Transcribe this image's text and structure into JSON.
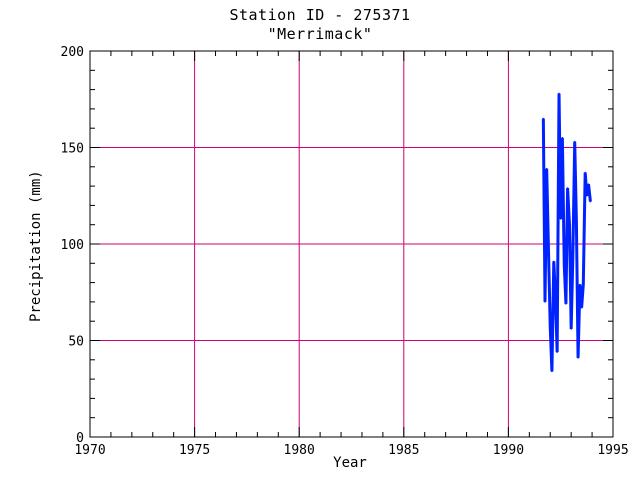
{
  "chart_data": {
    "type": "line",
    "title": "Station ID - 275371",
    "subtitle": "\"Merrimack\"",
    "xlabel": "Year",
    "ylabel": "Precipitation (mm)",
    "xlim": [
      1970,
      1995
    ],
    "ylim": [
      0,
      200
    ],
    "xticks": [
      1970,
      1975,
      1980,
      1985,
      1990,
      1995
    ],
    "yticks": [
      0,
      50,
      100,
      150,
      200
    ],
    "grid": true,
    "colors": {
      "series": "#0022ff",
      "grid": "#cc0077",
      "axis": "#000000"
    },
    "series": [
      {
        "x": [
          1991.67,
          1991.75,
          1991.83,
          1991.92,
          1992.0,
          1992.08,
          1992.17,
          1992.25,
          1992.33,
          1992.42,
          1992.5,
          1992.58,
          1992.67,
          1992.75,
          1992.83,
          1992.92,
          1993.0,
          1993.08,
          1993.17,
          1993.25,
          1993.33,
          1993.42,
          1993.5,
          1993.58,
          1993.67,
          1993.75,
          1993.83,
          1993.92
        ],
        "y": [
          165,
          70,
          139,
          95,
          57,
          34,
          91,
          72,
          44,
          178,
          113,
          155,
          89,
          69,
          129,
          110,
          56,
          93,
          153,
          112,
          41,
          79,
          67,
          79,
          137,
          125,
          131,
          122
        ]
      }
    ]
  }
}
